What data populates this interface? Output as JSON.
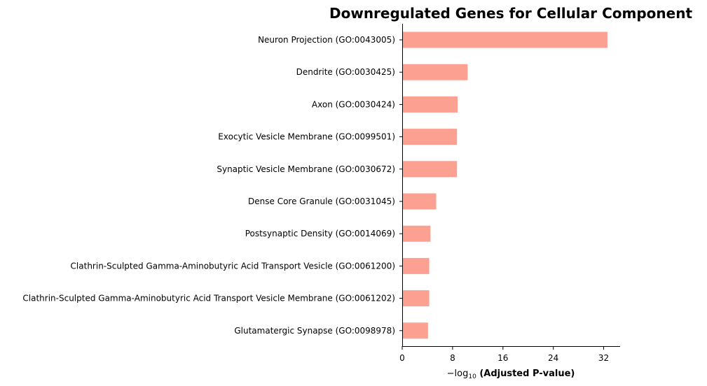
{
  "chart_data": {
    "type": "bar",
    "orientation": "horizontal",
    "title": "Downregulated Genes for Cellular Component",
    "xlabel_prefix": "−log",
    "xlabel_subscript": "10",
    "xlabel_rest": " (Adjusted P-value)",
    "categories": [
      "Neuron Projection (GO:0043005)",
      "Dendrite (GO:0030425)",
      "Axon (GO:0030424)",
      "Exocytic Vesicle Membrane (GO:0099501)",
      "Synaptic Vesicle Membrane (GO:0030672)",
      "Dense Core Granule (GO:0031045)",
      "Postsynaptic Density (GO:0014069)",
      "Clathrin-Sculpted Gamma-Aminobutyric Acid Transport Vesicle (GO:0061200)",
      "Clathrin-Sculpted Gamma-Aminobutyric Acid Transport Vesicle Membrane (GO:0061202)",
      "Glutamatergic Synapse (GO:0098978)"
    ],
    "values": [
      32.6,
      10.4,
      8.8,
      8.7,
      8.7,
      5.4,
      4.5,
      4.3,
      4.3,
      4.1
    ],
    "xlim": [
      0,
      34.5
    ],
    "xticks": [
      0,
      8,
      16,
      24,
      32
    ],
    "grid": false,
    "bar_color": "#fca091"
  }
}
